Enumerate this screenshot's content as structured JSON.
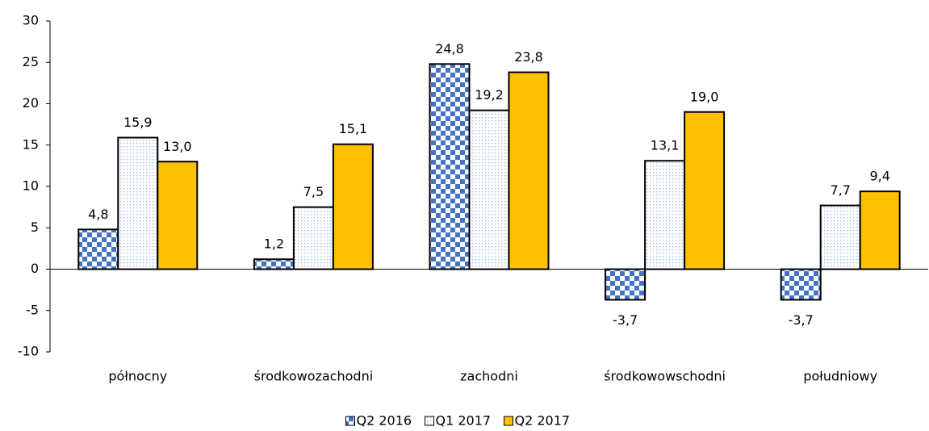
{
  "chart_data": {
    "type": "bar",
    "categories": [
      "północny",
      "środkowozachodni",
      "zachodni",
      "środkowowschodni",
      "południowy"
    ],
    "series": [
      {
        "name": "Q2 2016",
        "color": "#4472c4",
        "pattern": "checker",
        "values": [
          4.8,
          1.2,
          24.8,
          -3.7,
          -3.7
        ],
        "value_labels": [
          "4,8",
          "1,2",
          "24,8",
          "-3,7",
          "-3,7"
        ]
      },
      {
        "name": "Q1 2017",
        "color": "#8fb4e3",
        "pattern": "dots",
        "values": [
          15.9,
          7.5,
          19.2,
          13.1,
          7.7
        ],
        "value_labels": [
          "15,9",
          "7,5",
          "19,2",
          "13,1",
          "7,7"
        ]
      },
      {
        "name": "Q2 2017",
        "color": "#ffc000",
        "pattern": "solid",
        "values": [
          13.0,
          15.1,
          23.8,
          19.0,
          9.4
        ],
        "value_labels": [
          "13,0",
          "15,1",
          "23,8",
          "19,0",
          "9,4"
        ]
      }
    ],
    "ylim": [
      -10,
      30
    ],
    "yticks": [
      -10,
      -5,
      0,
      5,
      10,
      15,
      20,
      25,
      30
    ],
    "grid": false,
    "legend": "bottom"
  }
}
